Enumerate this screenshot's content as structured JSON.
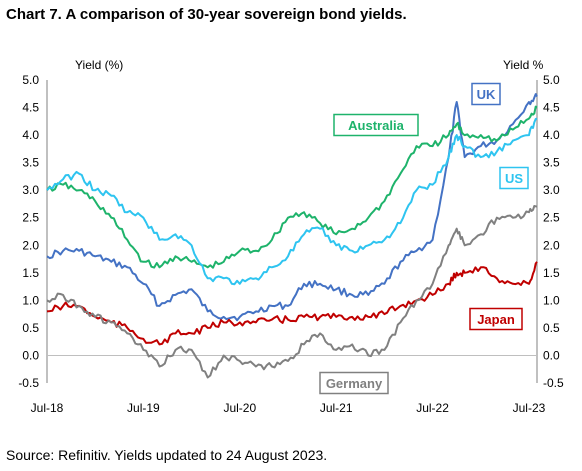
{
  "title": "Chart 7. A comparison of 30-year sovereign bond yields.",
  "source": "Source: Refinitiv. Yields updated to 24 August 2023.",
  "chart_data": {
    "type": "line",
    "ylabel_left": "Yield (%)",
    "ylabel_right": "Yield %",
    "ylim": [
      -0.5,
      5.0
    ],
    "yticks": [
      "5.0",
      "4.5",
      "4.0",
      "3.5",
      "3.0",
      "2.5",
      "2.0",
      "1.5",
      "1.0",
      "0.5",
      "0.0",
      "-0.5"
    ],
    "x_tick_labels": [
      "Jul-18",
      "Jul-19",
      "Jul-20",
      "Jul-21",
      "Jul-22",
      "Jul-23"
    ],
    "x_range": [
      "2018-07",
      "2023-08"
    ],
    "grid": false,
    "series": [
      {
        "name": "UK",
        "color": "#4472C4",
        "x": [
          "2018-07",
          "2018-09",
          "2018-11",
          "2019-01",
          "2019-03",
          "2019-05",
          "2019-07",
          "2019-09",
          "2019-11",
          "2020-01",
          "2020-03",
          "2020-05",
          "2020-07",
          "2020-09",
          "2020-11",
          "2021-01",
          "2021-03",
          "2021-05",
          "2021-07",
          "2021-09",
          "2021-11",
          "2022-01",
          "2022-03",
          "2022-05",
          "2022-07",
          "2022-09",
          "2022-10",
          "2022-11",
          "2023-01",
          "2023-03",
          "2023-05",
          "2023-07",
          "2023-08"
        ],
        "y": [
          1.8,
          1.9,
          1.9,
          1.8,
          1.7,
          1.6,
          1.3,
          0.9,
          1.1,
          1.2,
          0.8,
          0.7,
          0.7,
          0.8,
          0.9,
          0.9,
          1.3,
          1.3,
          1.2,
          1.1,
          1.1,
          1.3,
          1.7,
          1.9,
          2.1,
          3.6,
          4.6,
          3.6,
          3.8,
          3.9,
          4.2,
          4.6,
          4.7
        ]
      },
      {
        "name": "Australia",
        "color": "#1EB36B",
        "x": [
          "2018-07",
          "2018-09",
          "2018-11",
          "2019-01",
          "2019-03",
          "2019-05",
          "2019-07",
          "2019-09",
          "2019-11",
          "2020-01",
          "2020-03",
          "2020-05",
          "2020-07",
          "2020-09",
          "2020-11",
          "2021-01",
          "2021-03",
          "2021-05",
          "2021-07",
          "2021-09",
          "2021-11",
          "2022-01",
          "2022-03",
          "2022-05",
          "2022-07",
          "2022-09",
          "2022-10",
          "2022-11",
          "2023-01",
          "2023-03",
          "2023-05",
          "2023-07",
          "2023-08"
        ],
        "y": [
          3.0,
          3.1,
          3.0,
          2.8,
          2.5,
          2.1,
          1.7,
          1.6,
          1.8,
          1.7,
          1.6,
          1.7,
          1.9,
          1.9,
          2.1,
          2.5,
          2.6,
          2.4,
          2.2,
          2.3,
          2.5,
          2.8,
          3.3,
          3.8,
          3.8,
          4.0,
          4.2,
          4.0,
          4.0,
          3.9,
          4.1,
          4.3,
          4.5
        ]
      },
      {
        "name": "US",
        "color": "#2EC4F0",
        "x": [
          "2018-07",
          "2018-09",
          "2018-11",
          "2019-01",
          "2019-03",
          "2019-05",
          "2019-07",
          "2019-09",
          "2019-11",
          "2020-01",
          "2020-03",
          "2020-05",
          "2020-07",
          "2020-09",
          "2020-11",
          "2021-01",
          "2021-03",
          "2021-05",
          "2021-07",
          "2021-09",
          "2021-11",
          "2022-01",
          "2022-03",
          "2022-05",
          "2022-07",
          "2022-09",
          "2022-10",
          "2022-11",
          "2023-01",
          "2023-03",
          "2023-05",
          "2023-07",
          "2023-08"
        ],
        "y": [
          3.0,
          3.2,
          3.3,
          3.0,
          2.9,
          2.6,
          2.5,
          2.1,
          2.2,
          2.0,
          1.4,
          1.4,
          1.3,
          1.4,
          1.6,
          1.8,
          2.2,
          2.3,
          2.0,
          1.9,
          2.0,
          2.1,
          2.4,
          3.0,
          3.1,
          3.6,
          4.0,
          3.8,
          3.6,
          3.7,
          3.9,
          4.0,
          4.3
        ]
      },
      {
        "name": "Japan",
        "color": "#C00000",
        "x": [
          "2018-07",
          "2018-09",
          "2018-11",
          "2019-01",
          "2019-03",
          "2019-05",
          "2019-07",
          "2019-09",
          "2019-11",
          "2020-01",
          "2020-03",
          "2020-05",
          "2020-07",
          "2020-09",
          "2020-11",
          "2021-01",
          "2021-03",
          "2021-05",
          "2021-07",
          "2021-09",
          "2021-11",
          "2022-01",
          "2022-03",
          "2022-05",
          "2022-07",
          "2022-09",
          "2022-10",
          "2022-11",
          "2023-01",
          "2023-03",
          "2023-05",
          "2023-07",
          "2023-08"
        ],
        "y": [
          0.8,
          0.9,
          0.9,
          0.7,
          0.6,
          0.5,
          0.3,
          0.2,
          0.4,
          0.4,
          0.5,
          0.6,
          0.6,
          0.6,
          0.65,
          0.65,
          0.7,
          0.7,
          0.7,
          0.7,
          0.7,
          0.75,
          0.9,
          1.0,
          1.1,
          1.3,
          1.5,
          1.5,
          1.6,
          1.4,
          1.3,
          1.3,
          1.7
        ]
      },
      {
        "name": "Germany",
        "color": "#808080",
        "x": [
          "2018-07",
          "2018-09",
          "2018-11",
          "2019-01",
          "2019-03",
          "2019-05",
          "2019-07",
          "2019-09",
          "2019-11",
          "2020-01",
          "2020-03",
          "2020-05",
          "2020-07",
          "2020-09",
          "2020-11",
          "2021-01",
          "2021-03",
          "2021-05",
          "2021-07",
          "2021-09",
          "2021-11",
          "2022-01",
          "2022-03",
          "2022-05",
          "2022-07",
          "2022-09",
          "2022-10",
          "2022-11",
          "2023-01",
          "2023-03",
          "2023-05",
          "2023-07",
          "2023-08"
        ],
        "y": [
          1.0,
          1.1,
          0.9,
          0.7,
          0.6,
          0.4,
          0.1,
          -0.2,
          0.1,
          0.1,
          -0.4,
          0.0,
          -0.1,
          -0.2,
          -0.2,
          -0.1,
          0.2,
          0.4,
          0.1,
          0.2,
          0.0,
          0.1,
          0.6,
          1.0,
          1.3,
          2.0,
          2.3,
          2.0,
          2.2,
          2.5,
          2.5,
          2.6,
          2.7
        ]
      }
    ],
    "annotations": [
      {
        "text": "UK",
        "series": "UK"
      },
      {
        "text": "Australia",
        "series": "Australia"
      },
      {
        "text": "US",
        "series": "US"
      },
      {
        "text": "Japan",
        "series": "Japan"
      },
      {
        "text": "Germany",
        "series": "Germany"
      }
    ]
  }
}
